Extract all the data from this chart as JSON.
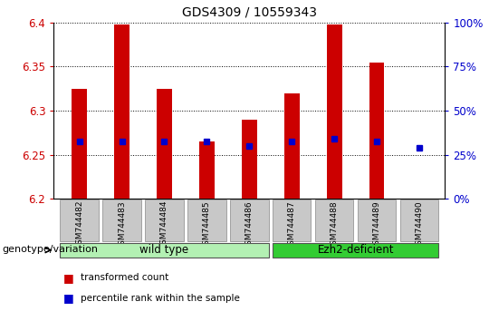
{
  "title": "GDS4309 / 10559343",
  "samples": [
    "GSM744482",
    "GSM744483",
    "GSM744484",
    "GSM744485",
    "GSM744486",
    "GSM744487",
    "GSM744488",
    "GSM744489",
    "GSM744490"
  ],
  "transformed_count": [
    6.325,
    6.398,
    6.325,
    6.265,
    6.29,
    6.32,
    6.398,
    6.355,
    6.201
  ],
  "percentile_rank": [
    6.265,
    6.265,
    6.265,
    6.265,
    6.26,
    6.265,
    6.268,
    6.265,
    6.258
  ],
  "bar_bottom": 6.2,
  "ylim": [
    6.2,
    6.4
  ],
  "y2lim": [
    0,
    100
  ],
  "y2ticks": [
    0,
    25,
    50,
    75,
    100
  ],
  "yticks": [
    6.2,
    6.25,
    6.3,
    6.35,
    6.4
  ],
  "bar_color": "#cc0000",
  "dot_color": "#0000cc",
  "groups": [
    {
      "label": "wild type",
      "start": 0,
      "end": 4,
      "color": "#b3f0b3"
    },
    {
      "label": "Ezh2-deficient",
      "start": 5,
      "end": 8,
      "color": "#33cc33"
    }
  ],
  "legend_items": [
    {
      "label": "transformed count",
      "color": "#cc0000"
    },
    {
      "label": "percentile rank within the sample",
      "color": "#0000cc"
    }
  ],
  "left_yaxis_color": "#cc0000",
  "right_yaxis_color": "#0000cc",
  "genotype_label": "genotype/variation",
  "tick_area_color": "#c8c8c8",
  "bar_width": 0.35
}
